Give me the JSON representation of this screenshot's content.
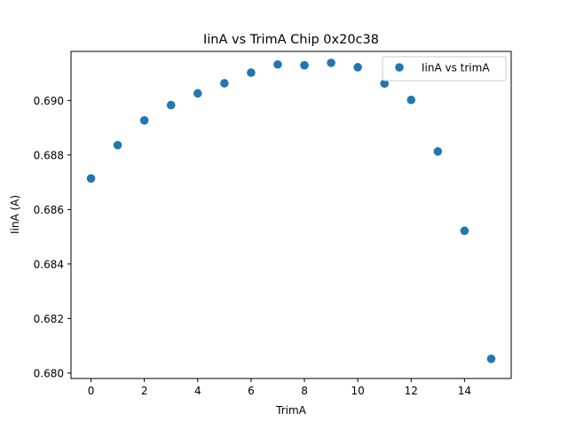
{
  "chart_data": {
    "type": "scatter",
    "title": "IinA vs TrimA Chip 0x20c38",
    "xlabel": "TrimA",
    "ylabel": "IinA (A)",
    "xlim": [
      -0.75,
      15.75
    ],
    "ylim": [
      0.6798,
      0.6918
    ],
    "xticks": [
      0,
      2,
      4,
      6,
      8,
      10,
      12,
      14
    ],
    "xtick_labels": [
      "0",
      "2",
      "4",
      "6",
      "8",
      "10",
      "12",
      "14"
    ],
    "yticks": [
      0.68,
      0.682,
      0.684,
      0.686,
      0.688,
      0.69
    ],
    "ytick_labels": [
      "0.680",
      "0.682",
      "0.684",
      "0.686",
      "0.688",
      "0.690"
    ],
    "grid": false,
    "legend_position": "top-right",
    "series": [
      {
        "name": "IinA vs trimA",
        "color": "#1f77b4",
        "marker": "circle",
        "x": [
          0,
          1,
          2,
          3,
          4,
          5,
          6,
          7,
          8,
          9,
          10,
          11,
          12,
          13,
          14,
          15
        ],
        "y": [
          0.68714,
          0.68836,
          0.68927,
          0.68983,
          0.69026,
          0.69063,
          0.69102,
          0.69132,
          0.69129,
          0.69138,
          0.69122,
          0.69062,
          0.69002,
          0.68813,
          0.68522,
          0.68052
        ]
      }
    ]
  }
}
